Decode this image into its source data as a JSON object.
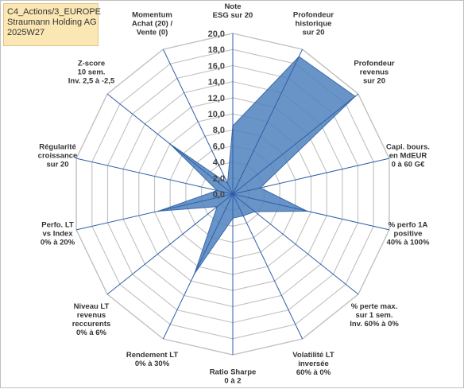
{
  "info_box": {
    "line1": "C4_Actions/3_EUROPE",
    "line2": "Straumann Holding AG",
    "line3": "2025W27"
  },
  "chart_data": {
    "type": "radar",
    "rlim": [
      0,
      20
    ],
    "tick_labels": [
      "0,0",
      "2,0",
      "4,0",
      "6,0",
      "8,0",
      "10,0",
      "12,0",
      "14,0",
      "16,0",
      "18,0",
      "20,0"
    ],
    "axes": [
      {
        "label": [
          "Note",
          "ESG sur 20"
        ],
        "value": 8.5
      },
      {
        "label": [
          "Profondeur",
          "historique",
          "sur 20"
        ],
        "value": 19.0
      },
      {
        "label": [
          "Profondeur",
          "revenus",
          "sur 20"
        ],
        "value": 19.5
      },
      {
        "label": [
          "Capi. bours.",
          "en MdEUR",
          "0 à 60 G€"
        ],
        "value": 3.5
      },
      {
        "label": [
          "% perfo 1A",
          "positive",
          "40% à 100%"
        ],
        "value": 9.5
      },
      {
        "label": [
          "% perte max.",
          "sur 1 sem.",
          "Inv. 60% à 0%"
        ],
        "value": 3.5
      },
      {
        "label": [
          "Volatilité LT",
          "inversée",
          "60% à 0%"
        ],
        "value": 3.0
      },
      {
        "label": [
          "Ratio Sharpe",
          "0 à 2"
        ],
        "value": 3.0
      },
      {
        "label": [
          "Rendement LT",
          "0% à 30%"
        ],
        "value": 11.0
      },
      {
        "label": [
          "Niveau LT",
          "revenus",
          "reccurents",
          "0% à 6%"
        ],
        "value": 2.5
      },
      {
        "label": [
          "Perfo. LT",
          "vs Index",
          "0% à 20%"
        ],
        "value": 9.5
      },
      {
        "label": [
          "Régularité",
          "croissance",
          "sur 20"
        ],
        "value": 2.0
      },
      {
        "label": [
          "Z-score",
          "10 sem.",
          "Inv. 2,5 à -2,5"
        ],
        "value": 10.0
      },
      {
        "label": [
          "Momentum",
          "Achat (20) /",
          "Vente (0)"
        ],
        "value": 1.5
      }
    ],
    "fill_color": "#4f81bd",
    "spoke_color": "#2e5fa8",
    "grid_color": "#c0c0c0"
  }
}
